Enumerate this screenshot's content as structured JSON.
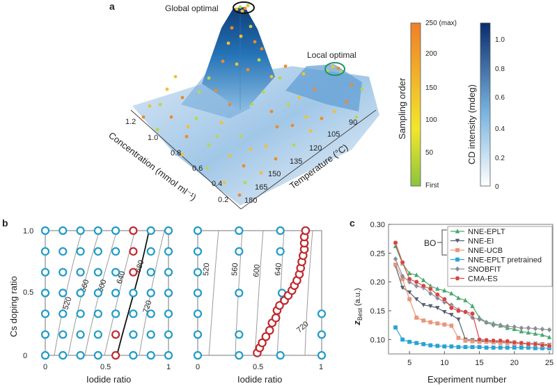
{
  "panels": {
    "a": {
      "letter": "a",
      "annotations": {
        "global": "Global optimal",
        "local": "Local optimal"
      },
      "concentration_axis": {
        "label": "Concentration (mmol ml⁻¹)",
        "ticks": [
          "1.2",
          "1.0",
          "0.8",
          "0.6",
          "0.4",
          "0.2"
        ]
      },
      "temperature_axis": {
        "label": "Temperature (°C)",
        "ticks": [
          "90",
          "105",
          "120",
          "135",
          "150",
          "165",
          "180"
        ]
      },
      "sampling_colorbar": {
        "label": "Sampling order",
        "ticks": [
          "250 (max)",
          "200",
          "150",
          "100",
          "50",
          "First"
        ]
      },
      "cd_colorbar": {
        "label": "CD intensity (mdeg)",
        "ticks": [
          "1.0",
          "0.8",
          "0.6",
          "0.4",
          "0.2",
          "0"
        ]
      },
      "colors": {
        "surface_light": "#e6eef6",
        "surface_dark": "#1f5f99",
        "peak": "#123f78",
        "sample_low": "#9ccc3c",
        "sample_high": "#f08a24",
        "global_ring": "#111111",
        "local_ring": "#1e9466"
      }
    },
    "b": {
      "letter": "b",
      "y_label": "Cs doping ratio",
      "y_ticks": [
        "0",
        "0.5",
        "1.0"
      ],
      "left": {
        "x_label": "Iodide ratio",
        "x_ticks": [
          "0",
          "0.5",
          "1"
        ],
        "contour_labels": [
          "520",
          "560",
          "600",
          "640",
          "680",
          "720"
        ]
      },
      "right": {
        "x_label": "Iodide ratio",
        "x_ticks": [
          "0",
          "0.5",
          "1"
        ],
        "contour_labels": [
          "520",
          "560",
          "600",
          "640",
          "720"
        ]
      },
      "colors": {
        "blue_marker": "#1e9ac8",
        "red_marker": "#c0272d",
        "contour": "#9a9a9a"
      }
    },
    "c": {
      "letter": "c",
      "bo_label": "BO",
      "y_label_main": "z",
      "y_label_sub": "Best",
      "y_label_units": "(a.u.)",
      "x_label": "Experiment number"
    }
  },
  "chart_data": [
    {
      "type": "line",
      "panel": "c",
      "xlabel": "Experiment number",
      "ylabel": "zBest (a.u.)",
      "xlim": [
        2,
        25.5
      ],
      "ylim": [
        0.075,
        0.3
      ],
      "x_ticks": [
        "5",
        "10",
        "15",
        "20",
        "25"
      ],
      "y_ticks": [
        "0.10",
        "0.15",
        "0.20",
        "0.25",
        "0.30"
      ],
      "grid": false,
      "legend": "top-right",
      "series": [
        {
          "name": "NNE-EPLT",
          "color": "#4aa86b",
          "marker": "triangle",
          "x": [
            3,
            4,
            5,
            6,
            7,
            8,
            9,
            10,
            11,
            12,
            13,
            14,
            15,
            16,
            17,
            18,
            19,
            20,
            21,
            22,
            23,
            24,
            25
          ],
          "values": [
            0.262,
            0.232,
            0.215,
            0.212,
            0.203,
            0.193,
            0.188,
            0.185,
            0.18,
            0.172,
            0.168,
            0.158,
            0.138,
            0.13,
            0.128,
            0.124,
            0.12,
            0.118,
            0.114,
            0.112,
            0.11,
            0.108,
            0.104
          ]
        },
        {
          "name": "NNE-EI",
          "color": "#555f70",
          "marker": "down-triangle",
          "x": [
            3,
            4,
            5,
            6,
            7,
            8,
            9,
            10,
            11,
            12,
            13,
            14,
            15,
            16,
            17,
            18,
            19,
            20,
            21,
            22,
            23,
            24,
            25
          ],
          "values": [
            0.228,
            0.19,
            0.182,
            0.17,
            0.16,
            0.158,
            0.155,
            0.148,
            0.143,
            0.135,
            0.1,
            0.099,
            0.098,
            0.097,
            0.096,
            0.096,
            0.095,
            0.095,
            0.094,
            0.093,
            0.093,
            0.092,
            0.091
          ]
        },
        {
          "name": "NNE-UCB",
          "color": "#e9967a",
          "marker": "square",
          "x": [
            3,
            4,
            5,
            6,
            7,
            8,
            9,
            10,
            11,
            12,
            13,
            14,
            15,
            16,
            17,
            18,
            19,
            20,
            21,
            22,
            23,
            24,
            25
          ],
          "values": [
            0.23,
            0.205,
            0.17,
            0.138,
            0.133,
            0.13,
            0.128,
            0.126,
            0.124,
            0.103,
            0.098,
            0.097,
            0.096,
            0.096,
            0.095,
            0.094,
            0.094,
            0.093,
            0.093,
            0.092,
            0.092,
            0.091,
            0.09
          ]
        },
        {
          "name": "NNE-EPLT pretrained",
          "color": "#29a3d6",
          "marker": "square",
          "x": [
            3,
            4,
            5,
            6,
            7,
            8,
            9,
            10,
            11,
            12,
            13,
            14,
            15,
            16,
            17,
            18,
            19,
            20,
            21,
            22,
            23,
            24,
            25
          ],
          "values": [
            0.121,
            0.1,
            0.096,
            0.094,
            0.092,
            0.09,
            0.089,
            0.088,
            0.088,
            0.087,
            0.087,
            0.087,
            0.087,
            0.086,
            0.086,
            0.086,
            0.086,
            0.086,
            0.086,
            0.086,
            0.085,
            0.085,
            0.085
          ]
        },
        {
          "name": "SNOBFIT",
          "color": "#8c8c99",
          "marker": "diamond",
          "x": [
            3,
            4,
            5,
            6,
            7,
            8,
            9,
            10,
            11,
            12,
            13,
            14,
            15,
            16,
            17,
            18,
            19,
            20,
            21,
            22,
            23,
            24,
            25
          ],
          "values": [
            0.24,
            0.21,
            0.2,
            0.193,
            0.19,
            0.18,
            0.172,
            0.165,
            0.16,
            0.152,
            0.148,
            0.138,
            0.135,
            0.13,
            0.125,
            0.125,
            0.123,
            0.122,
            0.12,
            0.12,
            0.119,
            0.118,
            0.117
          ]
        },
        {
          "name": "CMA-ES",
          "color": "#d64541",
          "marker": "circle",
          "x": [
            3,
            4,
            5,
            6,
            7,
            8,
            9,
            10,
            11,
            12,
            13,
            14,
            15,
            16,
            17,
            18,
            19,
            20,
            21,
            22,
            23,
            24,
            25
          ],
          "values": [
            0.268,
            0.234,
            0.205,
            0.2,
            0.193,
            0.188,
            0.178,
            0.17,
            0.155,
            0.15,
            0.148,
            0.145,
            0.1,
            0.099,
            0.098,
            0.098,
            0.097,
            0.095,
            0.094,
            0.092,
            0.092,
            0.09,
            0.089
          ]
        }
      ]
    }
  ]
}
